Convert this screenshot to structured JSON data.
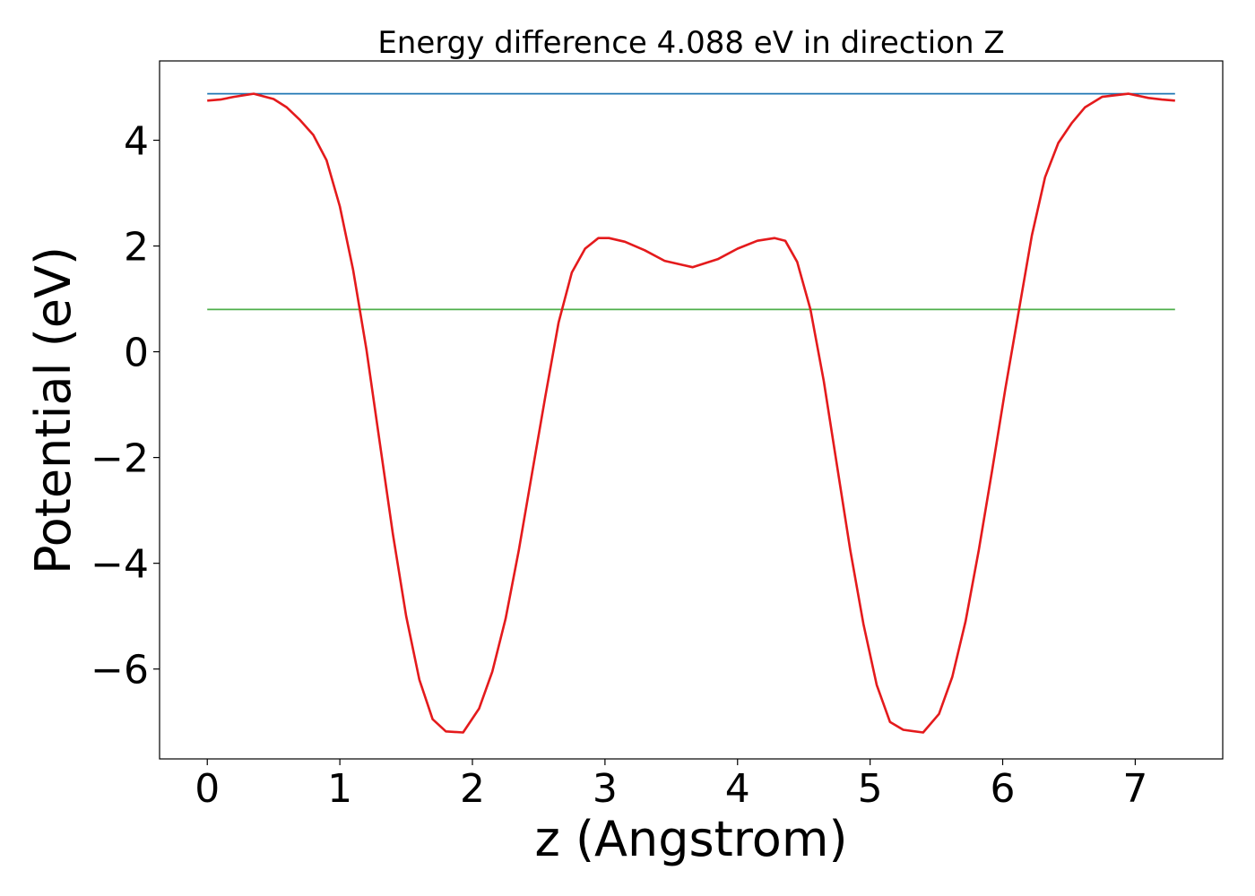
{
  "chart_data": {
    "type": "line",
    "title": "Energy difference 4.088 eV in direction Z",
    "xlabel": "z (Angstrom)",
    "ylabel": "Potential (eV)",
    "xlim": [
      -0.36,
      7.66
    ],
    "ylim": [
      -7.7,
      5.5
    ],
    "xticks": [
      0,
      1,
      2,
      3,
      4,
      5,
      6,
      7
    ],
    "xtick_labels": [
      "0",
      "1",
      "2",
      "3",
      "4",
      "5",
      "6",
      "7"
    ],
    "yticks": [
      -6,
      -4,
      -2,
      0,
      2,
      4
    ],
    "ytick_labels": [
      "−6",
      "−4",
      "−2",
      "0",
      "2",
      "4"
    ],
    "grid": false,
    "series": [
      {
        "color": "#e41a1c",
        "x": [
          0.0,
          0.1,
          0.2,
          0.35,
          0.5,
          0.6,
          0.7,
          0.8,
          0.9,
          1.0,
          1.1,
          1.2,
          1.3,
          1.4,
          1.5,
          1.6,
          1.7,
          1.8,
          1.93,
          2.05,
          2.15,
          2.25,
          2.35,
          2.45,
          2.55,
          2.65,
          2.75,
          2.85,
          2.95,
          3.03,
          3.15,
          3.3,
          3.45,
          3.66,
          3.85,
          4.0,
          4.15,
          4.28,
          4.36,
          4.45,
          4.55,
          4.65,
          4.75,
          4.85,
          4.95,
          5.05,
          5.15,
          5.25,
          5.4,
          5.52,
          5.62,
          5.72,
          5.82,
          5.92,
          6.02,
          6.12,
          6.22,
          6.32,
          6.42,
          6.52,
          6.62,
          6.75,
          6.95,
          7.1,
          7.2,
          7.3
        ],
        "y": [
          4.75,
          4.77,
          4.82,
          4.88,
          4.78,
          4.62,
          4.38,
          4.1,
          3.62,
          2.75,
          1.55,
          0.05,
          -1.7,
          -3.45,
          -5.0,
          -6.2,
          -6.95,
          -7.18,
          -7.2,
          -6.75,
          -6.05,
          -5.05,
          -3.75,
          -2.3,
          -0.85,
          0.55,
          1.5,
          1.95,
          2.15,
          2.15,
          2.08,
          1.92,
          1.72,
          1.6,
          1.75,
          1.95,
          2.1,
          2.15,
          2.1,
          1.7,
          0.8,
          -0.55,
          -2.15,
          -3.75,
          -5.15,
          -6.3,
          -7.0,
          -7.15,
          -7.2,
          -6.85,
          -6.15,
          -5.1,
          -3.75,
          -2.25,
          -0.7,
          0.75,
          2.2,
          3.3,
          3.95,
          4.32,
          4.62,
          4.82,
          4.88,
          4.8,
          4.77,
          4.75
        ]
      },
      {
        "color": "#1f77b4",
        "x": [
          0.0,
          7.3
        ],
        "y": [
          4.88,
          4.88
        ]
      },
      {
        "color": "#4daf4a",
        "x": [
          0.0,
          7.3
        ],
        "y": [
          0.8,
          0.8
        ]
      }
    ]
  }
}
